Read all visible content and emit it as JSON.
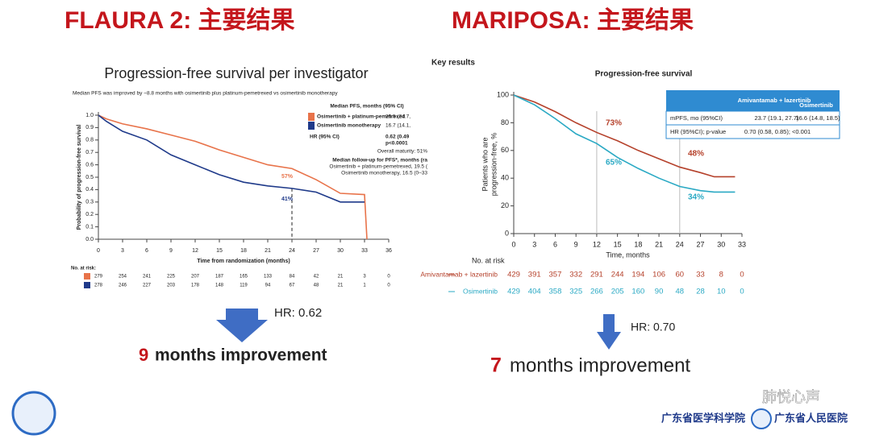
{
  "slide": {
    "left_heading": "FLAURA 2: 主要结果",
    "right_heading": "MARIPOSA: 主要结果",
    "left_hr": "HR: 0.62",
    "left_gain_number": "9",
    "left_gain_text": "months improvement",
    "right_hr": "HR: 0.70",
    "right_gain_number": "7",
    "right_gain_text": "months improvement",
    "footer": [
      "广东省医学科学院",
      "广东省人民医院",
      "肺悦心声"
    ]
  },
  "chart_data": [
    {
      "type": "line",
      "title": "Progression-free survival per investigator",
      "subtitle": "Median PFS was improved by ~8.8 months with osimertinib plus platinum-pemetrexed vs osimertinib monotherapy",
      "xlabel": "Time from randomization (months)",
      "ylabel": [
        "Probability of progression-free survival"
      ],
      "xlim": [
        0,
        36
      ],
      "ylim": [
        0,
        1
      ],
      "xticks": [
        0,
        3,
        6,
        9,
        12,
        15,
        18,
        21,
        24,
        27,
        30,
        33,
        36
      ],
      "yticks": [
        {
          "value": 0,
          "label": "0.0"
        },
        0.1,
        0.2,
        0.3,
        0.4,
        0.5,
        0.6,
        0.7,
        0.8,
        0.9,
        {
          "value": 1,
          "label": "1.0"
        }
      ],
      "series": [
        {
          "name": "Osimertinib + platinum-pemetrexed",
          "color": "#e8734a",
          "x": [
            0,
            1,
            3,
            6,
            9,
            12,
            15,
            18,
            21,
            24,
            27,
            30,
            33,
            33.3
          ],
          "values": [
            1,
            0.97,
            0.93,
            0.89,
            0.84,
            0.79,
            0.72,
            0.66,
            0.6,
            0.57,
            0.48,
            0.37,
            0.36,
            0
          ]
        },
        {
          "name": "Osimertinib monotherapy",
          "color": "#1f3a8a",
          "x": [
            0,
            1,
            3,
            6,
            9,
            12,
            15,
            18,
            21,
            24,
            27,
            30,
            33
          ],
          "values": [
            1,
            0.95,
            0.87,
            0.8,
            0.68,
            0.6,
            0.52,
            0.46,
            0.43,
            0.41,
            0.38,
            0.3,
            0.3
          ]
        }
      ],
      "annotations": [
        "57%",
        "41%"
      ],
      "legend_table": {
        "header": "Median PFS, months (95% CI)",
        "values": [
          "25.5 (24.7,",
          "16.7 (14.1,"
        ],
        "hr_label": "HR (95% CI)",
        "hr_value": "0.62 (0.49",
        "p_value": "p<0.0001",
        "maturity": "Overall maturity: 51%",
        "followup_title": "Median follow-up for PFS*, months (ra",
        "followup_lines": [
          "Osimertinib + platinum-pemetrexed, 19.5 (",
          "Osimertinib monotherapy, 16.5 (0–33"
        ]
      },
      "risk_table": {
        "title": "No. at risk:",
        "rows": [
          [
            279,
            254,
            241,
            225,
            207,
            187,
            165,
            133,
            84,
            42,
            21,
            3,
            0
          ],
          [
            278,
            246,
            227,
            203,
            178,
            148,
            119,
            94,
            67,
            48,
            21,
            1,
            0
          ]
        ]
      }
    },
    {
      "type": "line",
      "title": "Progression-free survival",
      "subtitle": "Key results",
      "xlabel": "Time, months",
      "ylabel": [
        "Patients who are",
        "progression-free, %"
      ],
      "xlim": [
        0,
        33
      ],
      "ylim": [
        0,
        100
      ],
      "xticks": [
        0,
        3,
        6,
        9,
        12,
        15,
        18,
        21,
        24,
        27,
        30,
        33
      ],
      "yticks": [
        0,
        20,
        40,
        60,
        80,
        100
      ],
      "series": [
        {
          "name": "Amivantamab + lazertinib",
          "color": "#b5412b",
          "x": [
            0,
            3,
            6,
            9,
            12,
            15,
            18,
            21,
            24,
            27,
            29,
            32
          ],
          "values": [
            100,
            95,
            88,
            80,
            73,
            67,
            60,
            54,
            48,
            44,
            41,
            41
          ]
        },
        {
          "name": "Osimertinib",
          "color": "#2aa9c4",
          "x": [
            0,
            3,
            6,
            9,
            12,
            15,
            18,
            21,
            24,
            27,
            29,
            32
          ],
          "values": [
            100,
            93,
            83,
            72,
            65,
            55,
            47,
            40,
            34,
            31,
            30,
            30
          ]
        }
      ],
      "annotations": [
        "73%",
        "65%",
        "48%",
        "34%"
      ],
      "result_table": {
        "rows": [
          [
            "mPFS, mo (95%CI)",
            "23.7 (19.1, 27.7)",
            "16.6 (14.8, 18.5)"
          ],
          [
            "HR (95%CI); p-value",
            "0.70 (0.58, 0.85); <0.001"
          ]
        ]
      },
      "risk_table": {
        "title": "No. at risk",
        "rows": [
          [
            429,
            391,
            357,
            332,
            291,
            244,
            194,
            106,
            60,
            33,
            8,
            0
          ],
          [
            429,
            404,
            358,
            325,
            266,
            205,
            160,
            90,
            48,
            28,
            10,
            0
          ]
        ]
      }
    }
  ]
}
